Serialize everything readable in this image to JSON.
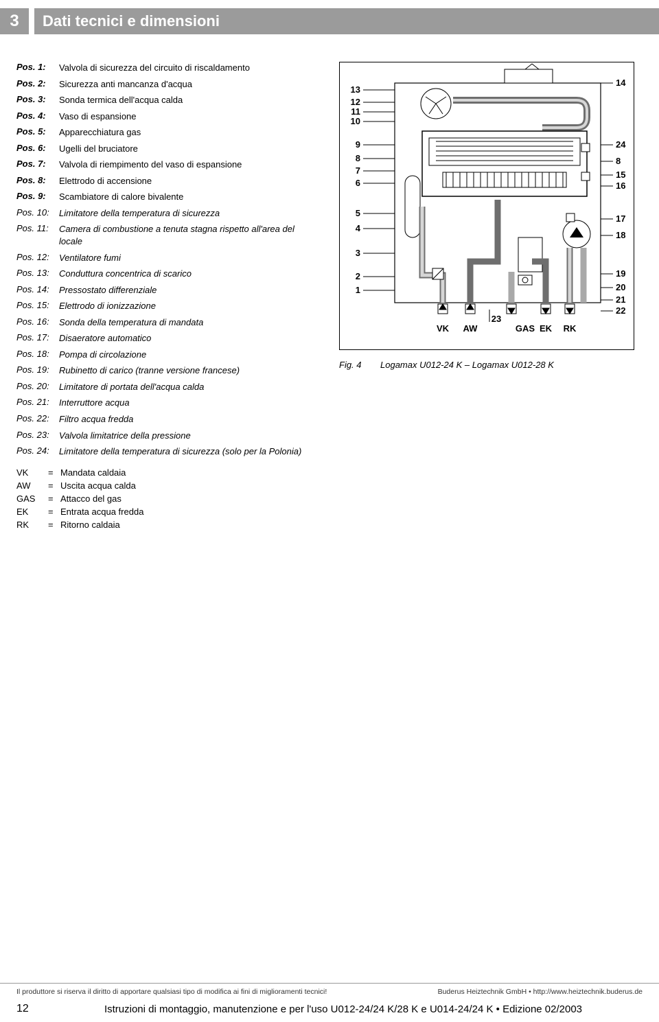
{
  "header": {
    "section_number": "3",
    "title": "Dati tecnici e dimensioni"
  },
  "positions_normal": [
    {
      "label": "Pos. 1:",
      "text": "Valvola di sicurezza del circuito di riscaldamento"
    },
    {
      "label": "Pos. 2:",
      "text": "Sicurezza anti mancanza d'acqua"
    },
    {
      "label": "Pos. 3:",
      "text": "Sonda termica dell'acqua calda"
    },
    {
      "label": "Pos. 4:",
      "text": "Vaso di espansione"
    },
    {
      "label": "Pos. 5:",
      "text": "Apparecchiatura gas"
    },
    {
      "label": "Pos. 6:",
      "text": "Ugelli del bruciatore"
    },
    {
      "label": "Pos. 7:",
      "text": "Valvola di riempimento del vaso di espansione"
    },
    {
      "label": "Pos. 8:",
      "text": "Elettrodo di accensione"
    },
    {
      "label": "Pos. 9:",
      "text": "Scambiatore di calore bivalente"
    }
  ],
  "positions_italic": [
    {
      "label": "Pos. 10:",
      "text": "Limitatore della temperatura di sicurezza"
    },
    {
      "label": "Pos. 11:",
      "text": "Camera di combustione a tenuta stagna rispetto all'area del locale"
    },
    {
      "label": "Pos. 12:",
      "text": "Ventilatore fumi"
    },
    {
      "label": "Pos. 13:",
      "text": "Conduttura concentrica di scarico"
    },
    {
      "label": "Pos. 14:",
      "text": "Pressostato differenziale"
    },
    {
      "label": "Pos. 15:",
      "text": "Elettrodo di ionizzazione"
    },
    {
      "label": "Pos. 16:",
      "text": "Sonda della temperatura di mandata"
    },
    {
      "label": "Pos. 17:",
      "text": "Disaeratore automatico"
    },
    {
      "label": "Pos. 18:",
      "text": "Pompa di circolazione"
    },
    {
      "label": "Pos. 19:",
      "text": "Rubinetto di carico (tranne versione francese)"
    },
    {
      "label": "Pos. 20:",
      "text": "Limitatore di portata dell'acqua calda"
    },
    {
      "label": "Pos. 21:",
      "text": "Interruttore acqua"
    },
    {
      "label": "Pos. 22:",
      "text": "Filtro acqua fredda"
    },
    {
      "label": "Pos. 23:",
      "text": "Valvola limitatrice della pressione"
    },
    {
      "label": "Pos. 24:",
      "text": "Limitatore della temperatura di sicurezza (solo per la Polonia)"
    }
  ],
  "legend": [
    {
      "key": "VK",
      "value": "Mandata caldaia"
    },
    {
      "key": "AW",
      "value": "Uscita acqua calda"
    },
    {
      "key": "GAS",
      "value": "Attacco del gas"
    },
    {
      "key": "EK",
      "value": "Entrata acqua fredda"
    },
    {
      "key": "RK",
      "value": "Ritorno caldaia"
    }
  ],
  "figure": {
    "label": "Fig. 4",
    "caption": "Logamax U012-24 K – Logamax U012-28 K",
    "bottom_labels": [
      "VK",
      "AW",
      "GAS",
      "EK",
      "RK"
    ],
    "bottom_num": "23",
    "left_nums": [
      "13",
      "12",
      "11",
      "10",
      "9",
      "8",
      "7",
      "6",
      "5",
      "4",
      "3",
      "2",
      "1"
    ],
    "right_nums": [
      "14",
      "24",
      "8",
      "15",
      "16",
      "17",
      "18",
      "19",
      "20",
      "21",
      "22"
    ],
    "colors": {
      "border": "#000000",
      "pipe_dark": "#6e6e6e",
      "pipe_mid": "#a9a9a9",
      "pipe_light": "#d6d6d6",
      "bg": "#ffffff",
      "text": "#000000"
    }
  },
  "footer": {
    "left_small": "Il produttore si riserva il diritto di apportare qualsiasi tipo di modifica ai fini di miglioramenti tecnici!",
    "right_small": "Buderus Heiztechnik GmbH • http://www.heiztechnik.buderus.de",
    "page_number": "12",
    "doc_title": "Istruzioni di montaggio, manutenzione e per l'uso U012-24/24 K/28 K e U014-24/24 K • Edizione 02/2003"
  }
}
